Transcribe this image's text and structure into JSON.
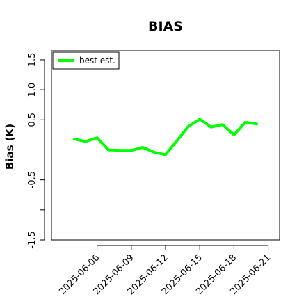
{
  "chart_data": {
    "type": "line",
    "title": "BIAS",
    "ylabel": "Bias (K)",
    "xlabel": "",
    "x": [
      "2025-06-04",
      "2025-06-05",
      "2025-06-06",
      "2025-06-07",
      "2025-06-08",
      "2025-06-09",
      "2025-06-10",
      "2025-06-11",
      "2025-06-12",
      "2025-06-13",
      "2025-06-14",
      "2025-06-15",
      "2025-06-16",
      "2025-06-17",
      "2025-06-18",
      "2025-06-19",
      "2025-06-20",
      "2025-06-21"
    ],
    "xlim": [
      "2025-06-02",
      "2025-06-22"
    ],
    "x_ticks": [
      "2025-06-06",
      "2025-06-09",
      "2025-06-12",
      "2025-06-15",
      "2025-06-18",
      "2025-06-21"
    ],
    "y_ticks": [
      "-1.5",
      "-0.5",
      "0.5",
      "1.0",
      "1.5"
    ],
    "ylim": [
      -1.5,
      1.65
    ],
    "reference_line": 0,
    "legend": {
      "placement": "top-left",
      "entries": [
        {
          "label": "best est.",
          "color": "#00ff00"
        }
      ]
    },
    "series": [
      {
        "name": "best est.",
        "color": "#00ff00",
        "values": [
          0.18,
          0.14,
          0.2,
          0.0,
          -0.01,
          -0.01,
          0.04,
          -0.04,
          -0.08,
          0.15,
          0.39,
          0.51,
          0.38,
          0.42,
          0.25,
          0.46,
          0.43,
          null
        ]
      }
    ]
  }
}
